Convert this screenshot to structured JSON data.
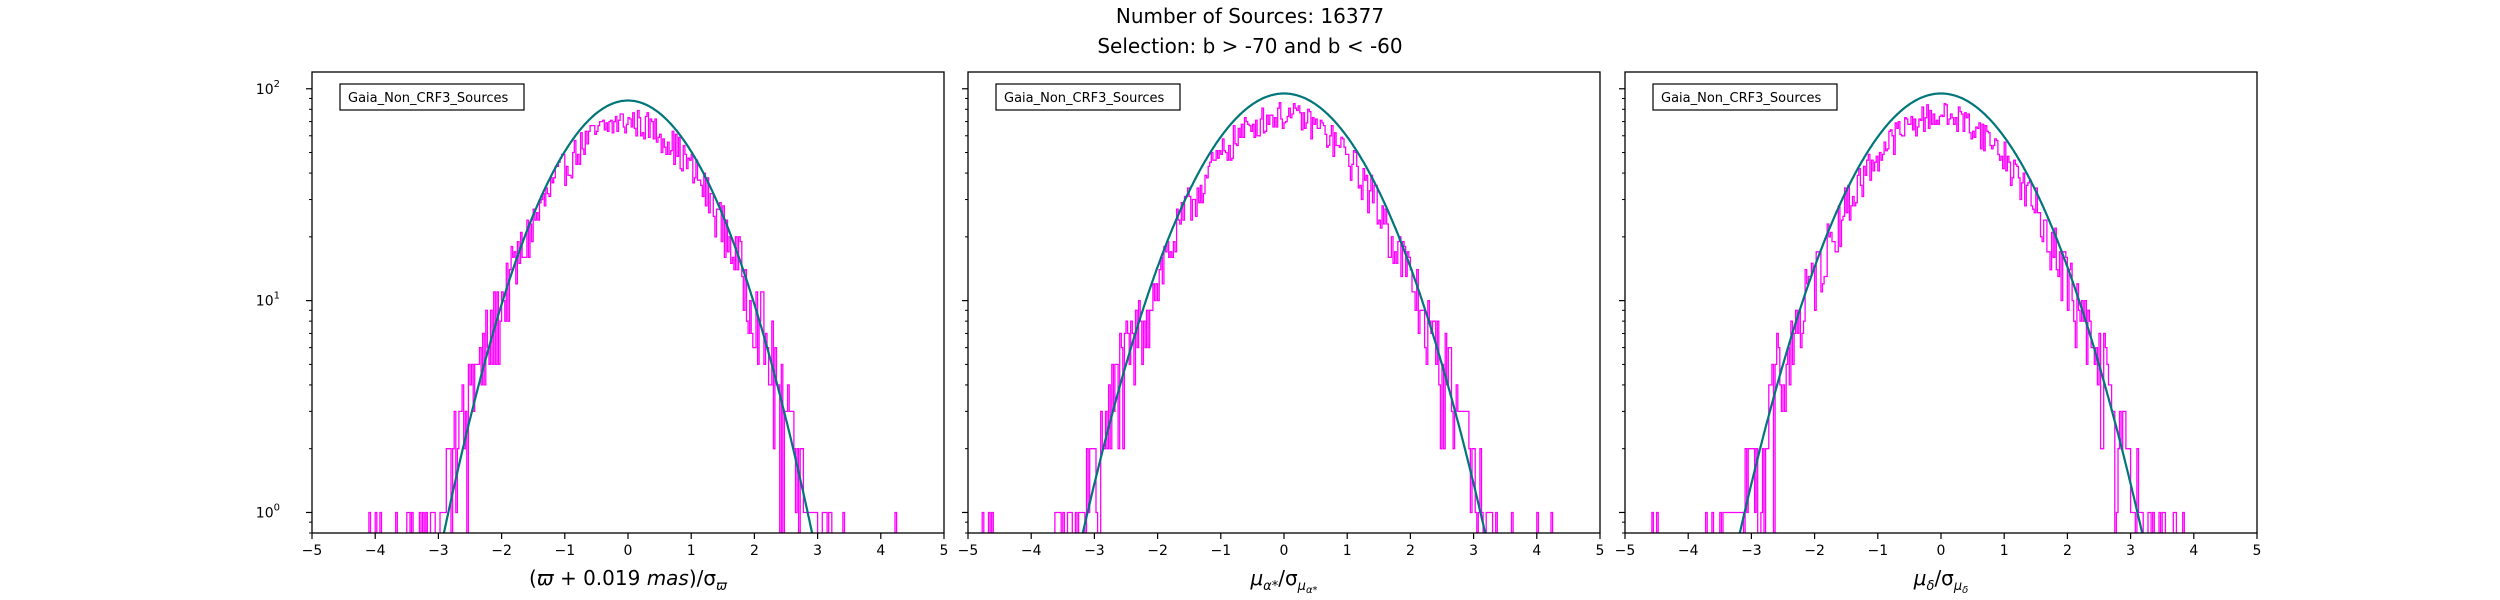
{
  "figure": {
    "title_line1": "Number of Sources: 16377",
    "title_line2": "Selection: b > -70 and b < -60"
  },
  "colors": {
    "histogram": "#ff00ff",
    "fit_curve": "#00767a",
    "axes": "#000000"
  },
  "chart_data": [
    {
      "type": "histogram-step",
      "legend": "Gaia_Non_CRF3_Sources",
      "legend_location": "upper-left",
      "xlabel_parts": {
        "a": "(",
        "b": "ϖ",
        "c": " + 0.019 ",
        "d": "mas",
        "e": ")/σ",
        "sub": "ϖ"
      },
      "xlim": [
        -5,
        5
      ],
      "ylim": [
        0.8,
        120
      ],
      "yscale": "log",
      "xticks": [
        "−5",
        "−4",
        "−3",
        "−2",
        "−1",
        "0",
        "1",
        "2",
        "3",
        "4",
        "5"
      ],
      "yticks": [
        "10",
        "10",
        "10"
      ],
      "ytick_exponents": [
        "0",
        "1",
        "2"
      ],
      "gaussian_fit": {
        "peak": 88,
        "mean": 0.0,
        "sigma": 0.95
      },
      "histogram_envelope": {
        "peak": 70,
        "mean": 0.0,
        "sigma": 1.0,
        "min_x": -4.4,
        "max_x": 4.3
      }
    },
    {
      "type": "histogram-step",
      "legend": "Gaia_Non_CRF3_Sources",
      "legend_location": "upper-left",
      "xlabel_parts": {
        "a": "μ",
        "b": "α*",
        "c": "/σ",
        "d": "μ",
        "e": "α*"
      },
      "xlim": [
        -5,
        5
      ],
      "ylim": [
        0.8,
        120
      ],
      "yscale": "log",
      "xticks": [
        "−5",
        "−4",
        "−3",
        "−2",
        "−1",
        "0",
        "1",
        "2",
        "3",
        "4",
        "5"
      ],
      "gaussian_fit": {
        "peak": 95,
        "mean": 0.0,
        "sigma": 1.03
      },
      "histogram_envelope": {
        "peak": 75,
        "mean": 0.0,
        "sigma": 1.06,
        "min_x": -4.8,
        "max_x": 4.4
      }
    },
    {
      "type": "histogram-step",
      "legend": "Gaia_Non_CRF3_Sources",
      "legend_location": "upper-left",
      "xlabel_parts": {
        "a": "μ",
        "b": "δ",
        "c": "/σ",
        "d": "μ",
        "e": "δ"
      },
      "xlim": [
        -5,
        5
      ],
      "ylim": [
        0.8,
        120
      ],
      "yscale": "log",
      "xticks": [
        "−5",
        "−4",
        "−3",
        "−2",
        "−1",
        "0",
        "1",
        "2",
        "3",
        "4",
        "5"
      ],
      "gaussian_fit": {
        "peak": 95,
        "mean": 0.0,
        "sigma": 1.03
      },
      "histogram_envelope": {
        "peak": 75,
        "mean": 0.0,
        "sigma": 1.06,
        "min_x": -4.9,
        "max_x": 4.4
      }
    }
  ]
}
